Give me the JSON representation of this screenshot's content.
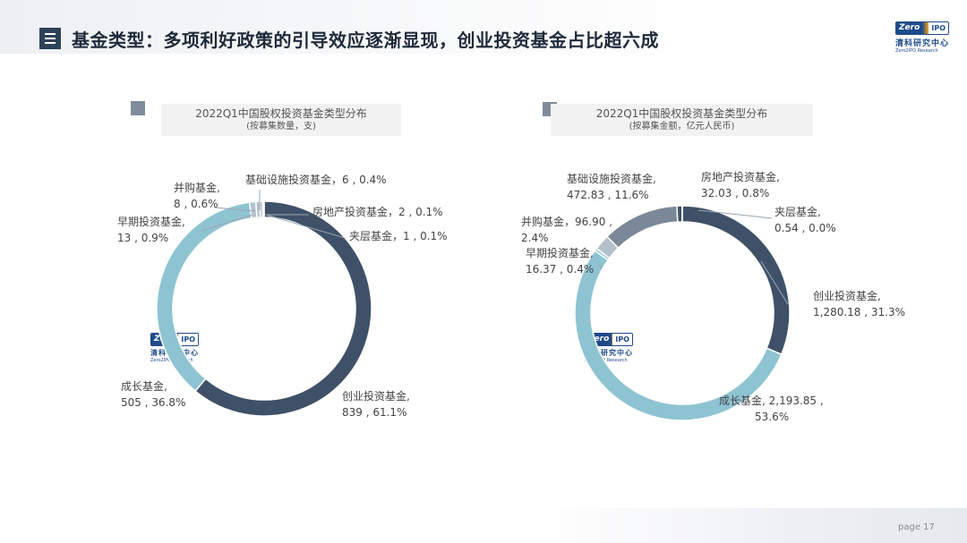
{
  "header": {
    "title": "基金类型：多项利好政策的引导效应逐渐显现，创业投资基金占比超六成",
    "logo": {
      "en_a": "Zero",
      "en_b": "IPO",
      "cn": "清科研究中心",
      "sub": "Zero2IPO Research"
    }
  },
  "footer": {
    "page_label": "page  17"
  },
  "colors": {
    "dark": "#3f5168",
    "light": "#8ec4d2",
    "grey": "#7a8898",
    "pale": "#b3c1cc",
    "line": "#9aa5b1",
    "sep": "#ffffff"
  },
  "chart_data": [
    {
      "type": "pie",
      "title": "2022Q1中国股权投资基金类型分布",
      "subtitle": "(按募集数量，支)",
      "slices": [
        {
          "name": "创业投资基金",
          "value": 839,
          "percent": "61.1%",
          "label": "创业投资基金,",
          "label2": "839 , 61.1%"
        },
        {
          "name": "成长基金",
          "value": 505,
          "percent": "36.8%",
          "label": "成长基金,",
          "label2": "505 , 36.8%"
        },
        {
          "name": "早期投资基金",
          "value": 13,
          "percent": "0.9%",
          "label": "早期投资基金,",
          "label2": "13 , 0.9%"
        },
        {
          "name": "并购基金",
          "value": 8,
          "percent": "0.6%",
          "label": "并购基金,",
          "label2": "8 , 0.6%"
        },
        {
          "name": "基础设施投资基金",
          "value": 6,
          "percent": "0.4%",
          "label": "基础设施投资基金，6 , 0.4%",
          "label2": ""
        },
        {
          "name": "房地产投资基金",
          "value": 2,
          "percent": "0.1%",
          "label": "房地产投资基金，2 , 0.1%",
          "label2": ""
        },
        {
          "name": "夹层基金",
          "value": 1,
          "percent": "0.1%",
          "label": "夹层基金，1 , 0.1%",
          "label2": ""
        }
      ]
    },
    {
      "type": "pie",
      "title": "2022Q1中国股权投资基金类型分布",
      "subtitle": "(按募集金额，亿元人民币)",
      "slices": [
        {
          "name": "创业投资基金",
          "value": 1280.18,
          "percent": "31.3%",
          "label": "创业投资基金,",
          "label2": "1,280.18 , 31.3%"
        },
        {
          "name": "成长基金",
          "value": 2193.85,
          "percent": "53.6%",
          "label": "成长基金, 2,193.85 ,",
          "label2": "53.6%"
        },
        {
          "name": "早期投资基金",
          "value": 16.37,
          "percent": "0.4%",
          "label": "早期投资基金,",
          "label2": "16.37 , 0.4%"
        },
        {
          "name": "并购基金",
          "value": 96.9,
          "percent": "2.4%",
          "label": "并购基金，96.90 ,",
          "label2": "2.4%"
        },
        {
          "name": "基础设施投资基金",
          "value": 472.83,
          "percent": "11.6%",
          "label": "基础设施投资基金,",
          "label2": "472.83 , 11.6%"
        },
        {
          "name": "房地产投资基金",
          "value": 32.03,
          "percent": "0.8%",
          "label": "房地产投资基金,",
          "label2": "32.03 , 0.8%"
        },
        {
          "name": "夹层基金",
          "value": 0.54,
          "percent": "0.0%",
          "label": "夹层基金,",
          "label2": "0.54 , 0.0%"
        }
      ]
    }
  ]
}
